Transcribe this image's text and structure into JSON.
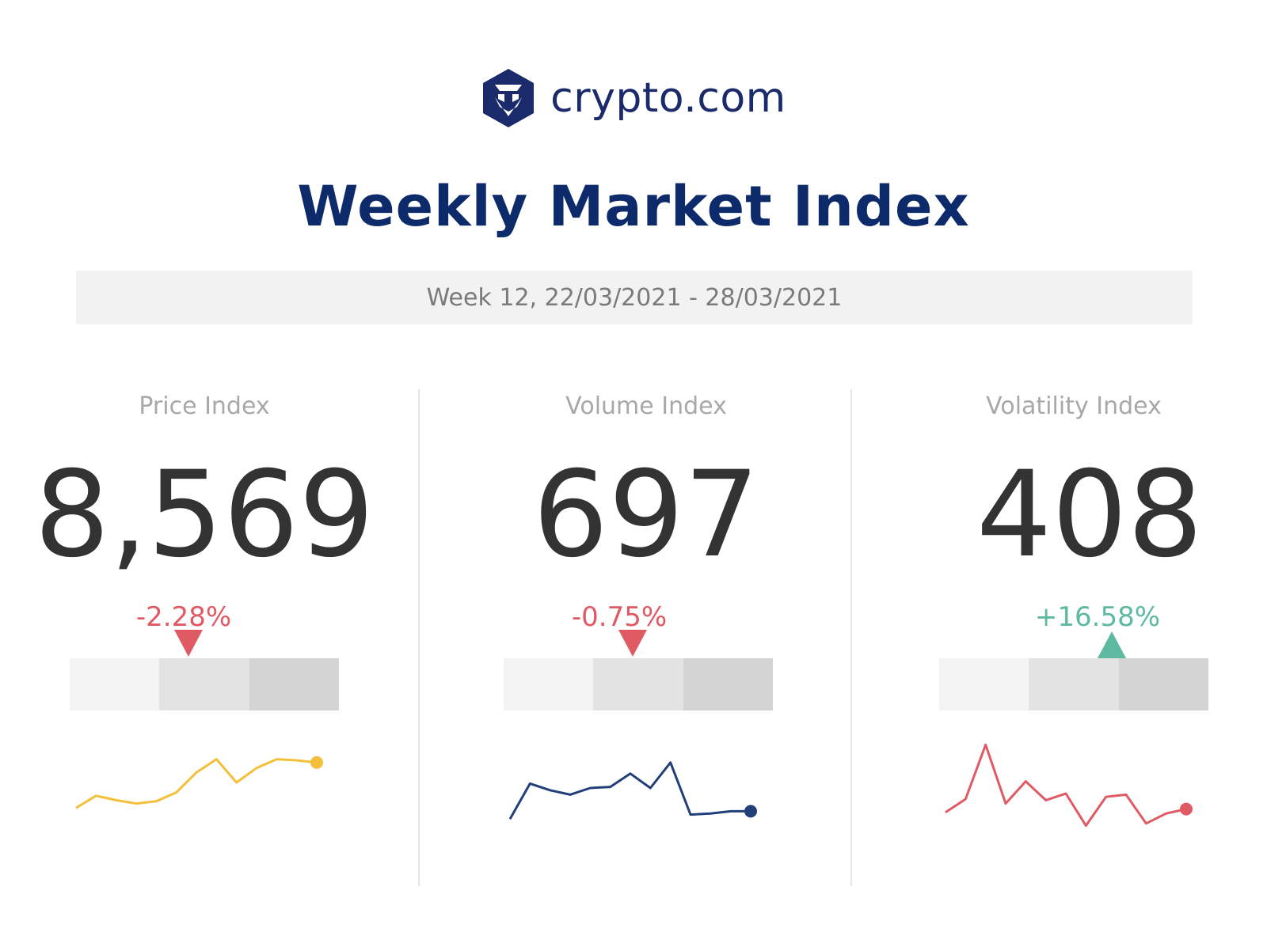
{
  "brand": {
    "name": "crypto.com",
    "color": "#1b2a6b"
  },
  "title": "Weekly Market Index",
  "week": "Week 12, 22/03/2021 - 28/03/2021",
  "colors": {
    "negative": "#e05a64",
    "positive": "#5dbaa0",
    "scale": [
      "#f4f4f4",
      "#e3e3e3",
      "#d4d4d4"
    ]
  },
  "chart_data": [
    {
      "type": "line",
      "label": "Price Index",
      "value": "8,569",
      "change": "-2.28%",
      "direction": "down",
      "scale_position": 0.44,
      "color": "#f4bf3a",
      "values": [
        4.2,
        5.3,
        4.9,
        4.6,
        4.8,
        5.6,
        7.4,
        8.6,
        6.5,
        7.8,
        8.6,
        8.5,
        8.3
      ]
    },
    {
      "type": "line",
      "label": "Volume Index",
      "value": "697",
      "change": "-0.75%",
      "direction": "down",
      "scale_position": 0.48,
      "color": "#233f7a",
      "values": [
        3.2,
        6.4,
        5.8,
        5.4,
        6.0,
        6.1,
        7.3,
        6.0,
        8.3,
        3.6,
        3.7,
        3.9,
        3.9
      ]
    },
    {
      "type": "line",
      "label": "Volatility Index",
      "value": "408",
      "change": "+16.58%",
      "direction": "up",
      "scale_position": 0.64,
      "color": "#e05a64",
      "values": [
        3.8,
        5.0,
        9.9,
        4.6,
        6.6,
        4.9,
        5.5,
        2.6,
        5.2,
        5.4,
        2.8,
        3.7,
        4.1
      ]
    }
  ]
}
